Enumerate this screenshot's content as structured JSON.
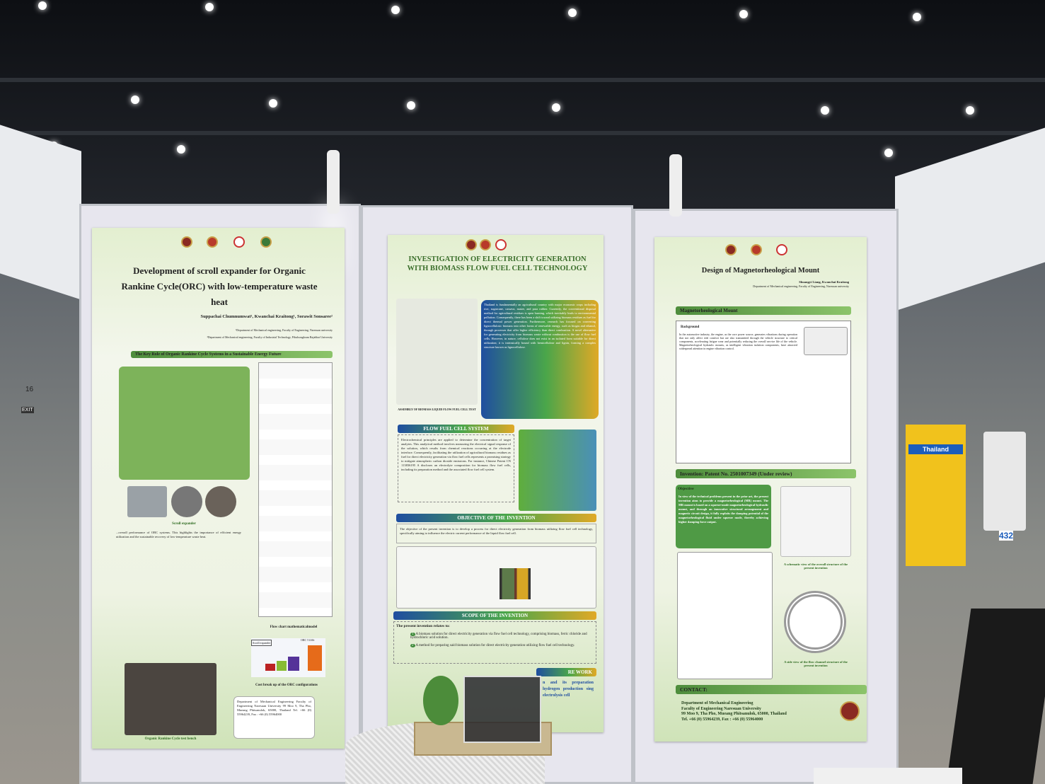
{
  "left_poster": {
    "title": "Development of scroll expander for Organic Rankine Cycle(ORC) with low-temperature waste heat",
    "authors": "Suppachai Chumnumwat¹, Kwanchai Kraitong¹, Sorawit Sonsaree²",
    "affiliation_1": "¹Department of Mechanical engineering, Faculty of Engineering, Naresuan university",
    "affiliation_2": "²Department of Mechanical engineering, Faculty of Industrial Technology, Pibulsongkram Rajabhat University",
    "section_heading": "The Key Role of Organic Rankine Cycle Systems in a Sustainable Energy Future",
    "caption_scroll": "Scroll expander",
    "caption_flowchart": "Flow chart mathematicalmodel",
    "caption_cost": "Cost break up of the ORC configurations",
    "chart_label_scroll": "Scroll expander",
    "chart_label_orc": "ORC 5 kWe",
    "caption_bench": "Organic Rankine Cycle test bench",
    "contact": "Department of Mechanical Engineering Faculty of Engineering Naresuan University 99 Moo 9, Tha Pho, Mueang Phitsanulok, 65000, Thailand Tel. +66 (0) 55964239, Fax : +66 (0) 55964000",
    "body_end": "...overall performance of ORC systems. This highlights the importance of efficient energy utilization and the sustainable recovery of low-temperature waste heat."
  },
  "middle_poster": {
    "title": "INVESTIGATION OF ELECTRICITY GENERATION WITH BIOMASS FLOW FUEL CELL TECHNOLOGY",
    "intro": "Thailand is fundamentally an agricultural country with major economic crops including rice, sugarcane, cassava, maize, and para rubber. Currently, the conventional disposal method for agricultural residues is open burning, which inevitably leads to environmental pollution. Consequently, there has been a shift toward utilizing biomass residues as fuel for direct thermal power generation. Furthermore, research has focused on converting lignocellulosic biomass into other forms of renewable energy, such as biogas and ethanol, through processes that offer higher efficiency than direct combustion. A novel alternative for generating electricity from biomass waste without combustion is the use of flow fuel cells. However, in nature, cellulose does not exist in an isolated form suitable for direct utilization; it is intrinsically bound with hemicellulose and lignin, forming a complex structure known as lignocellulose.",
    "caption_assembly": "ASSEMBLY OF BIOMASS LIQUID FLOW FUEL CELL TEST",
    "flow_heading": "FLOW FUEL CELL SYSTEM",
    "flow_text": "Electrochemical principles are applied to determine the concentration of target analytes. This analytical method involves measuring the electrical signal response of the solution, which results from chemical reactions occurring at the electrode interface. Consequently, facilitating the utilization of agricultural biomass residues as fuel for direct electricity generation via flow fuel cells represents a promising strategy to mitigate atmospheric carbon dioxide emissions. For instance, Chinese Patent CN 113836195 A discloses an electrolyte composition for biomass flow fuel cells, including its preparation method and the associated flow fuel cell system.",
    "objective_heading": "OBJECTIVE OF THE INVENTION",
    "objective_text": "The objective of the present invention is to develop a process for direct electricity generation from biomass utilizing flow fuel cell technology, specifically aiming to influence the electric current performance of the liquid flow fuel cell.",
    "scope_heading": "SCOPE OF THE INVENTION",
    "scope_intro": "The present invention relates to:",
    "scope_items": [
      {
        "num": "1",
        "text": "A biomass solution for direct electricity generation via flow fuel cell technology, comprising biomass, ferric chloride and hydrochloric acid solution."
      },
      {
        "num": "2",
        "text": "A method for preparing said biomass solution for direct electricity generation utilizing flow fuel cell technology."
      }
    ],
    "future_heading": "RE WORK",
    "future_text": "n and its preparation hydrogen production sing electrolysis cell"
  },
  "right_poster": {
    "title": "Design of Magnetorheological Mount",
    "authors": "Shuangyi Liang, Kwanchai Kraitong",
    "affiliation": "Department of Mechanical engineering, Faculty of Engineering, Naresuan university",
    "section_heading": "Magnetorheological Mount",
    "background_label": "Background",
    "background_text": "In the automotive industry, the engine, as the core power source, generates vibrations during operation that not only affect ride comfort but are also transmitted through the vehicle structure to critical components, accelerating fatigue wear and potentially reducing the overall service life of the vehicle. Magnetorheological hydraulic mounts, as intelligent vibration isolation components, have attracted widespread attention in engine vibration control.",
    "patent_heading": "Invention: Patent No. 2501007349 (Under review)",
    "objective_label": "Objective",
    "objective_text": "In view of the technical problems present in the prior art, the present invention aims to provide a magnetorheological (MR) mount. The MR mount is based on a squeeze-mode magnetorheological hydraulic mount, and through an innovative structural arrangement and magnetic circuit design, it fully exploits the damping potential of the magnetorheological fluid under squeeze mode, thereby achieving higher damping force output.",
    "caption_schematic": "A schematic view of the overall structure of the present invention",
    "caption_side": "A side view of the flow channel structure of the present invention",
    "contact_heading": "CONTACT:",
    "contact_lines": [
      "Department of Mechanical Engineering",
      "Faculty of Engineering Naresuan University",
      "99 Moo 9, Tha Pho, Mueang Phitsanulok, 65000, Thailand",
      "Tel. +66 (0) 55964239, Fax : +66 (0) 55964000"
    ]
  },
  "background": {
    "hall_number": "16",
    "exit_sign": "EXIT",
    "booth_sign": "Thailand",
    "counter": "432"
  }
}
